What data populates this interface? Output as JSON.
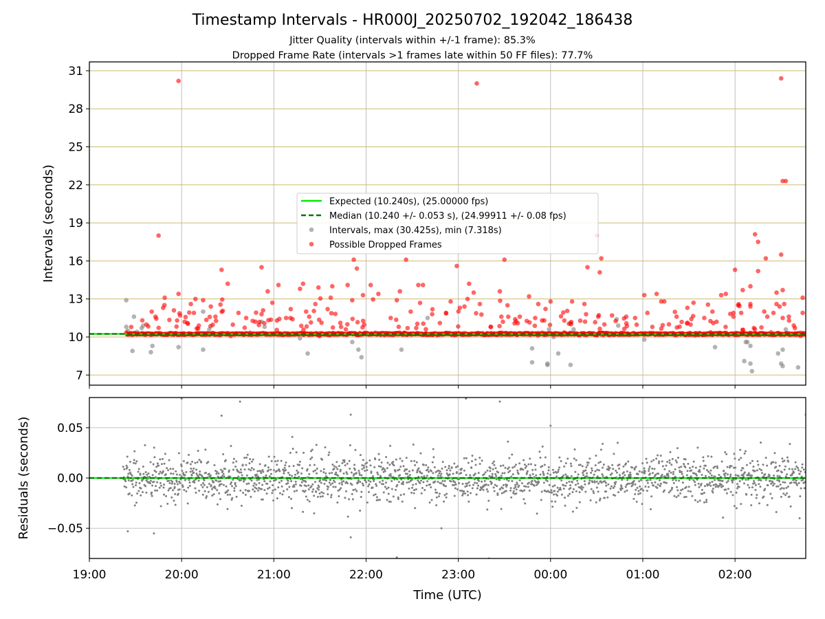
{
  "chart_data": [
    {
      "type": "scatter",
      "title": "Timestamp Intervals - HR000J_20250702_192042_186438",
      "subtitle_lines": [
        "Jitter Quality (intervals within +/-1 frame): 85.3%",
        "Dropped Frame Rate (intervals >1 frames late within 50 FF files): 77.7%"
      ],
      "xlabel": "",
      "ylabel": "Intervals (seconds)",
      "x_axis_type": "time",
      "xlim": [
        "19:00",
        "02:46"
      ],
      "x_ticks": [
        "19:00",
        "20:00",
        "21:00",
        "22:00",
        "23:00",
        "00:00",
        "01:00",
        "02:00"
      ],
      "ylim": [
        6.2,
        31.7
      ],
      "y_ticks": [
        7,
        10,
        13,
        16,
        19,
        22,
        25,
        28,
        31
      ],
      "grid": true,
      "legend_position": "center",
      "reference_lines": [
        {
          "name": "Expected (10.240s), (25.00000 fps)",
          "y": 10.24,
          "style": "solid",
          "color": "#00ee00"
        },
        {
          "name": "Median (10.240 +/- 0.053 s), (24.99911 +/- 0.08 fps)",
          "y": 10.24,
          "style": "dashed",
          "color": "#007700"
        }
      ],
      "series": [
        {
          "name": "Intervals, max (30.425s), min (7.318s)",
          "color": "#808080",
          "x": [
            "19:24",
            "19:24",
            "19:25",
            "19:28",
            "19:29",
            "19:31",
            "19:34",
            "19:35",
            "19:40",
            "19:41",
            "19:44",
            "19:58",
            "20:14",
            "20:14",
            "20:18",
            "20:52",
            "20:54",
            "21:17",
            "21:22",
            "21:51",
            "21:55",
            "21:57",
            "22:23",
            "22:40",
            "23:48",
            "23:48",
            "23:58",
            "23:58",
            "23:59",
            "00:02",
            "00:05",
            "00:13",
            "00:13",
            "00:15",
            "00:43",
            "00:44",
            "00:50",
            "01:01",
            "01:34",
            "01:46",
            "01:47",
            "02:06",
            "02:07",
            "02:08",
            "02:08",
            "02:10",
            "02:10",
            "02:11",
            "02:25",
            "02:26",
            "02:28",
            "02:30",
            "02:31",
            "02:31",
            "02:33",
            "02:41"
          ],
          "values": [
            12.9,
            10.8,
            10.5,
            8.9,
            11.6,
            10.4,
            10.7,
            10.9,
            8.8,
            9.3,
            10.2,
            9.2,
            12.0,
            9.0,
            10.6,
            11.2,
            10.8,
            9.9,
            8.7,
            9.6,
            9.0,
            8.4,
            9.0,
            11.5,
            8.0,
            9.1,
            7.9,
            7.8,
            10.6,
            10.0,
            8.7,
            7.8,
            11.1,
            10.6,
            11.4,
            10.9,
            10.2,
            9.8,
            10.1,
            10.3,
            9.2,
            8.1,
            9.6,
            9.6,
            10.2,
            9.3,
            7.9,
            7.3,
            10.3,
            10.2,
            8.7,
            7.9,
            7.7,
            9.0,
            10.6,
            7.6
          ]
        },
        {
          "name": "Possible Dropped Frames",
          "color": "#ff0000",
          "x": [
            "19:43",
            "19:45",
            "19:48",
            "19:49",
            "19:55",
            "19:58",
            "19:59",
            "20:02",
            "20:06",
            "20:08",
            "20:09",
            "20:14",
            "20:19",
            "20:22",
            "20:26",
            "20:30",
            "20:37",
            "20:42",
            "20:48",
            "20:52",
            "20:53",
            "20:56",
            "20:59",
            "21:02",
            "21:03",
            "21:08",
            "21:11",
            "21:17",
            "21:19",
            "21:21",
            "21:23",
            "21:27",
            "21:29",
            "21:35",
            "21:37",
            "21:38",
            "21:48",
            "21:51",
            "21:52",
            "21:54",
            "21:58",
            "22:03",
            "22:08",
            "22:16",
            "22:20",
            "22:22",
            "22:26",
            "22:29",
            "22:34",
            "22:37",
            "22:43",
            "22:48",
            "22:52",
            "22:55",
            "22:59",
            "23:01",
            "23:04",
            "23:06",
            "23:07",
            "23:10",
            "23:14",
            "23:21",
            "23:27",
            "23:28",
            "23:29",
            "23:32",
            "23:37",
            "23:40",
            "23:46",
            "23:50",
            "00:00",
            "00:14",
            "00:22",
            "00:24",
            "00:30",
            "00:31",
            "00:32",
            "00:40",
            "00:55",
            "01:01",
            "01:03",
            "01:09",
            "01:12",
            "01:14",
            "01:17",
            "01:22",
            "01:29",
            "01:33",
            "01:40",
            "01:48",
            "01:51",
            "01:54",
            "01:59",
            "01:59",
            "02:00",
            "02:02",
            "02:04",
            "02:05",
            "02:10",
            "02:10",
            "02:10",
            "02:13",
            "02:15",
            "02:15",
            "02:19",
            "02:21",
            "02:25",
            "02:27",
            "02:27",
            "02:29",
            "02:31",
            "02:31",
            "02:32",
            "02:33",
            "02:35",
            "02:44",
            "02:44"
          ],
          "values": [
            11.6,
            18.0,
            12.3,
            13.1,
            12.1,
            13.4,
            11.7,
            11.2,
            12.6,
            11.9,
            13.0,
            12.9,
            12.4,
            11.6,
            15.3,
            14.2,
            11.9,
            11.5,
            11.2,
            11.8,
            12.1,
            13.6,
            12.7,
            11.3,
            14.1,
            11.5,
            12.2,
            13.8,
            14.2,
            12.0,
            11.6,
            12.6,
            13.9,
            12.2,
            13.1,
            14.0,
            14.1,
            12.9,
            16.1,
            15.4,
            13.3,
            14.1,
            13.4,
            11.5,
            12.9,
            13.6,
            16.1,
            12.0,
            14.1,
            14.1,
            11.8,
            11.1,
            11.9,
            12.8,
            15.6,
            12.3,
            12.4,
            13.0,
            14.2,
            13.5,
            12.6,
            10.8,
            13.6,
            11.6,
            11.2,
            12.5,
            11.4,
            11.6,
            13.2,
            11.5,
            12.8,
            12.8,
            12.6,
            15.5,
            18.0,
            11.6,
            15.1,
            11.7,
            11.5,
            13.3,
            11.9,
            13.4,
            12.8,
            12.8,
            11.0,
            11.6,
            12.3,
            12.7,
            11.5,
            11.2,
            13.3,
            13.4,
            11.6,
            11.9,
            15.3,
            12.5,
            11.9,
            13.7,
            14.0,
            12.4,
            12.6,
            18.1,
            17.5,
            15.2,
            12.0,
            11.6,
            11.9,
            13.5,
            12.6,
            12.4,
            13.7,
            11.5,
            12.6,
            22.3,
            11.6,
            11.9,
            13.1
          ],
          "outliers": [
            {
              "x": "19:58",
              "y": 30.2
            },
            {
              "x": "23:12",
              "y": 30.0
            },
            {
              "x": "02:30",
              "y": 30.4
            },
            {
              "x": "02:31",
              "y": 22.3
            },
            {
              "x": "02:30",
              "y": 16.5
            },
            {
              "x": "02:20",
              "y": 16.2
            },
            {
              "x": "23:30",
              "y": 16.1
            },
            {
              "x": "00:33",
              "y": 16.2
            },
            {
              "x": "20:52",
              "y": 15.5
            }
          ],
          "dense_band": {
            "x_start": "19:24",
            "x_end": "02:46",
            "y": 10.24
          }
        }
      ]
    },
    {
      "type": "scatter",
      "title": "",
      "xlabel": "Time (UTC)",
      "ylabel": "Residuals (seconds)",
      "x_axis_type": "time",
      "xlim": [
        "19:00",
        "02:46"
      ],
      "x_ticks": [
        "19:00",
        "20:00",
        "21:00",
        "22:00",
        "23:00",
        "00:00",
        "01:00",
        "02:00"
      ],
      "ylim": [
        -0.08,
        0.08
      ],
      "y_ticks": [
        "0.05",
        "0.00",
        "−0.05"
      ],
      "grid": true,
      "reference_lines": [
        {
          "y": 0.0,
          "style": "solid",
          "color": "#00ee00"
        },
        {
          "y": 0.0,
          "style": "dashed",
          "color": "#007700"
        }
      ],
      "series": [
        {
          "name": "",
          "color": "#808080",
          "x_start": "19:22",
          "x_end": "02:46",
          "point_count": 1900,
          "spread_std": 0.012,
          "highlights": [
            {
              "x": "20:00",
              "y": 0.079
            },
            {
              "x": "20:38",
              "y": 0.076
            },
            {
              "x": "20:26",
              "y": 0.062
            },
            {
              "x": "21:50",
              "y": 0.063
            },
            {
              "x": "22:20",
              "y": -0.079
            },
            {
              "x": "22:49",
              "y": -0.05
            },
            {
              "x": "23:05",
              "y": 0.079
            },
            {
              "x": "23:20",
              "y": -0.08
            },
            {
              "x": "23:27",
              "y": 0.076
            },
            {
              "x": "00:00",
              "y": 0.052
            },
            {
              "x": "19:25",
              "y": -0.053
            },
            {
              "x": "19:42",
              "y": -0.055
            },
            {
              "x": "21:50",
              "y": -0.059
            },
            {
              "x": "02:46",
              "y": 0.063
            },
            {
              "x": "02:42",
              "y": -0.04
            }
          ]
        }
      ]
    }
  ]
}
